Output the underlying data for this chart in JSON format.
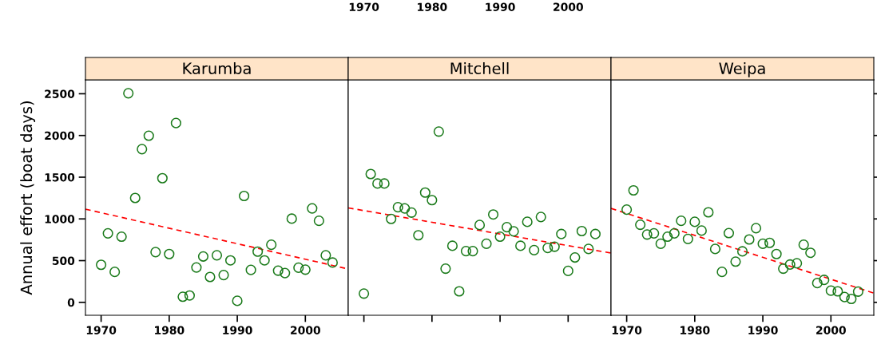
{
  "chart_data": [
    {
      "type": "scatter",
      "title": "Karumba",
      "ylabel": "Annual effort (boat days)",
      "xlim": [
        1967.7,
        2006.3
      ],
      "ylim": [
        -155,
        2667
      ],
      "xticks": [
        1970,
        1980,
        1990,
        2000
      ],
      "yticks": [
        0,
        500,
        1000,
        1500,
        2000,
        2500
      ],
      "grid": false,
      "series": [
        {
          "color": "#1a7a1a",
          "marker": "circle",
          "x": [
            1970,
            1971,
            1972,
            1973,
            1974,
            1975,
            1976,
            1977,
            1978,
            1979,
            1980,
            1981,
            1982,
            1983,
            1984,
            1985,
            1986,
            1987,
            1988,
            1989,
            1990,
            1991,
            1992,
            1993,
            1994,
            1995,
            1996,
            1997,
            1998,
            1999,
            2000,
            2001,
            2002,
            2003,
            2004
          ],
          "values": [
            450,
            827,
            365,
            787,
            2506,
            1251,
            1836,
            1997,
            602,
            1488,
            579,
            2149,
            67,
            82,
            418,
            550,
            304,
            564,
            327,
            503,
            18,
            1275,
            389,
            608,
            503,
            690,
            380,
            351,
            1003,
            415,
            392,
            1126,
            977,
            564,
            477
          ]
        },
        {
          "type": "line",
          "color": "#ff0000",
          "line_style": "dashed",
          "x": [
            1967.7,
            2006.3
          ],
          "values": [
            1117,
            400
          ]
        }
      ]
    },
    {
      "type": "scatter",
      "title": "Mitchell",
      "xlim": [
        1967.7,
        2006.3
      ],
      "ylim": [
        -155,
        2667
      ],
      "xticks": [
        1970,
        1980,
        1990,
        2000
      ],
      "yticks": [
        0,
        500,
        1000,
        1500,
        2000,
        2500
      ],
      "tick_labels": "x",
      "grid": false,
      "series": [
        {
          "color": "#1a7a1a",
          "marker": "circle",
          "x": [
            1970,
            1971,
            1972,
            1973,
            1974,
            1975,
            1976,
            1977,
            1978,
            1979,
            1980,
            1981,
            1982,
            1983,
            1984,
            1985,
            1986,
            1987,
            1988,
            1989,
            1990,
            1991,
            1992,
            1993,
            1994,
            1995,
            1996,
            1997,
            1998,
            1999,
            2000,
            2001,
            2002,
            2003,
            2004
          ],
          "values": [
            105,
            1538,
            1424,
            1424,
            1000,
            1140,
            1126,
            1076,
            804,
            1316,
            1225,
            2047,
            404,
            678,
            132,
            614,
            614,
            927,
            702,
            1053,
            787,
            901,
            851,
            678,
            965,
            626,
            1023,
            652,
            667,
            819,
            377,
            538,
            854,
            640,
            819
          ]
        },
        {
          "type": "line",
          "color": "#ff0000",
          "line_style": "dashed",
          "x": [
            1967.7,
            2006.3
          ],
          "values": [
            1132,
            591
          ]
        }
      ]
    },
    {
      "type": "scatter",
      "title": "Weipa",
      "xlim": [
        1967.7,
        2006.3
      ],
      "ylim": [
        -155,
        2667
      ],
      "xticks": [
        1970,
        1980,
        1990,
        2000
      ],
      "yticks": [
        0,
        500,
        1000,
        1500,
        2000,
        2500
      ],
      "tick_labels": "x",
      "grid": false,
      "series": [
        {
          "color": "#1a7a1a",
          "marker": "circle",
          "x": [
            1970,
            1971,
            1972,
            1973,
            1974,
            1975,
            1976,
            1977,
            1978,
            1979,
            1980,
            1981,
            1982,
            1983,
            1984,
            1985,
            1986,
            1987,
            1988,
            1989,
            1990,
            1991,
            1992,
            1993,
            1994,
            1995,
            1996,
            1997,
            1998,
            1999,
            2000,
            2001,
            2002,
            2003,
            2004
          ],
          "values": [
            1111,
            1342,
            930,
            813,
            827,
            702,
            787,
            827,
            977,
            760,
            965,
            860,
            1079,
            640,
            365,
            830,
            488,
            611,
            754,
            889,
            702,
            713,
            579,
            404,
            453,
            468,
            690,
            594,
            231,
            269,
            140,
            132,
            64,
            41,
            129
          ]
        },
        {
          "type": "line",
          "color": "#ff0000",
          "line_style": "dashed",
          "x": [
            1967.7,
            2006.3
          ],
          "values": [
            1126,
            111
          ]
        }
      ]
    }
  ]
}
